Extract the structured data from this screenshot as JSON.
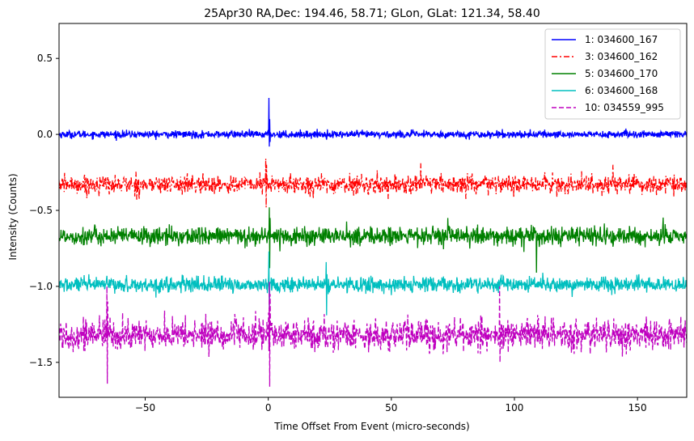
{
  "chart_data": {
    "type": "line",
    "title": "25Apr30 RA,Dec:  194.46,  58.71; GLon, GLat:  121.34,  58.40",
    "xlabel": "Time Offset From Event (micro-seconds)",
    "ylabel": "Intensity (Counts)",
    "xlim": [
      -85,
      170
    ],
    "ylim": [
      -1.73,
      0.73
    ],
    "xticks": [
      -50,
      0,
      50,
      100,
      150
    ],
    "xtick_labels": [
      "−50",
      "0",
      "50",
      "100",
      "150"
    ],
    "yticks": [
      0.5,
      0.0,
      -0.5,
      -1.0,
      -1.5
    ],
    "ytick_labels": [
      "0.5",
      "0.0",
      "−0.5",
      "−1.0",
      "−1.5"
    ],
    "legend_position": "top-right",
    "series": [
      {
        "name": "1: 034600_167",
        "color": "#0000ff",
        "style": "solid",
        "baseline": 0.0,
        "noise": 0.012,
        "spikes": [
          {
            "x": 0.2,
            "values": [
              0.24,
              -0.08,
              0.1,
              -0.05
            ]
          }
        ]
      },
      {
        "name": "3: 034600_162",
        "color": "#ff0000",
        "style": "dashdot",
        "baseline": -0.33,
        "noise": 0.03,
        "spikes": [
          {
            "x": -1.0,
            "values": [
              -0.16,
              -0.48,
              -0.2
            ]
          },
          {
            "x": 62.0,
            "values": [
              -0.19
            ]
          },
          {
            "x": 140.0,
            "values": [
              -0.2
            ]
          }
        ]
      },
      {
        "name": "5: 034600_170",
        "color": "#008000",
        "style": "solid",
        "baseline": -0.67,
        "noise": 0.03,
        "spikes": [
          {
            "x": 0.5,
            "values": [
              -0.48,
              -0.88,
              -0.55
            ]
          },
          {
            "x": 109.0,
            "values": [
              -0.91
            ]
          },
          {
            "x": 73.0,
            "values": [
              -0.55
            ]
          }
        ]
      },
      {
        "name": "6: 034600_168",
        "color": "#00bfbf",
        "style": "solid",
        "baseline": -0.99,
        "noise": 0.025,
        "spikes": [
          {
            "x": 0.3,
            "values": [
              -0.77,
              -1.15
            ]
          },
          {
            "x": 23.5,
            "values": [
              -0.84,
              -1.19,
              -0.92
            ]
          }
        ]
      },
      {
        "name": "10: 034559_995",
        "color": "#bf00bf",
        "style": "dashed",
        "baseline": -1.32,
        "noise": 0.05,
        "spikes": [
          {
            "x": -65.5,
            "values": [
              -1.0,
              -1.64,
              -1.1
            ]
          },
          {
            "x": 0.5,
            "values": [
              -0.97,
              -1.66,
              -1.05
            ]
          },
          {
            "x": 94.0,
            "values": [
              -1.0,
              -1.5
            ]
          }
        ]
      }
    ]
  }
}
